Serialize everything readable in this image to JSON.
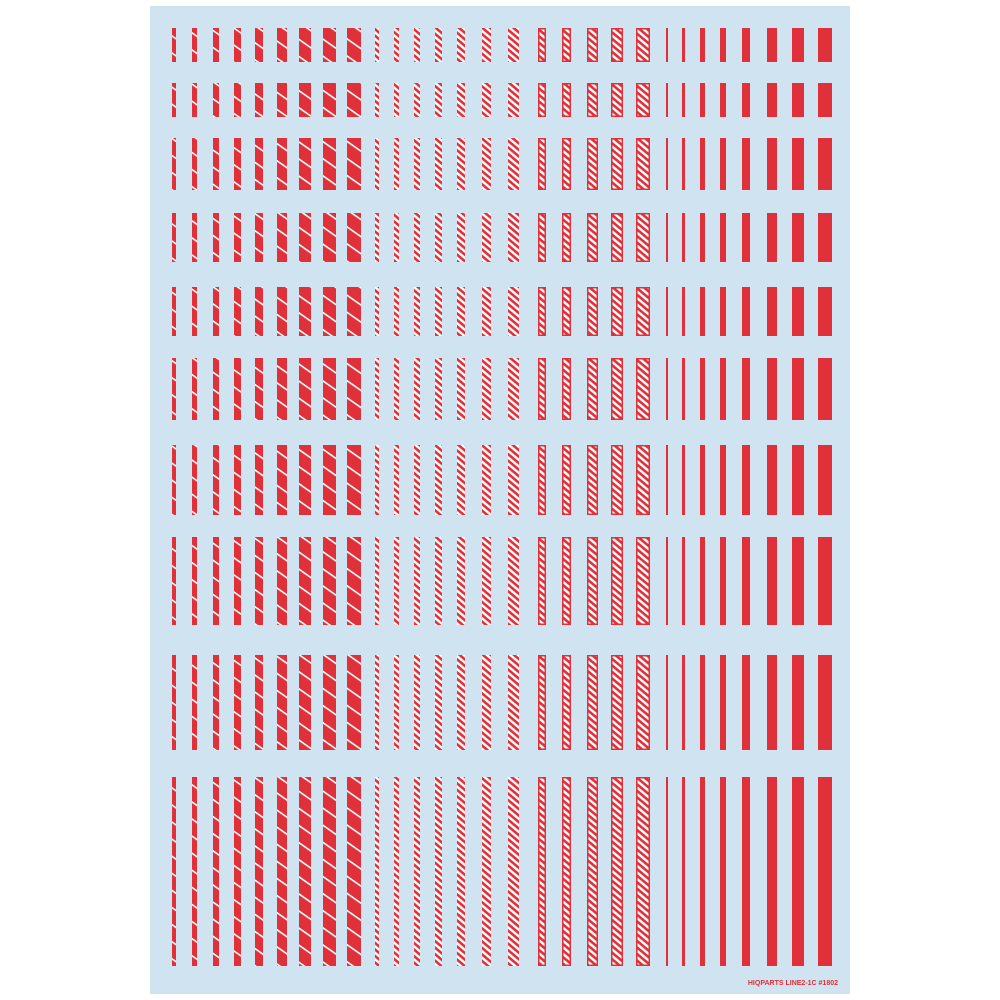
{
  "footer": {
    "label": "HIQPARTS LINE2-1C #1802"
  }
}
